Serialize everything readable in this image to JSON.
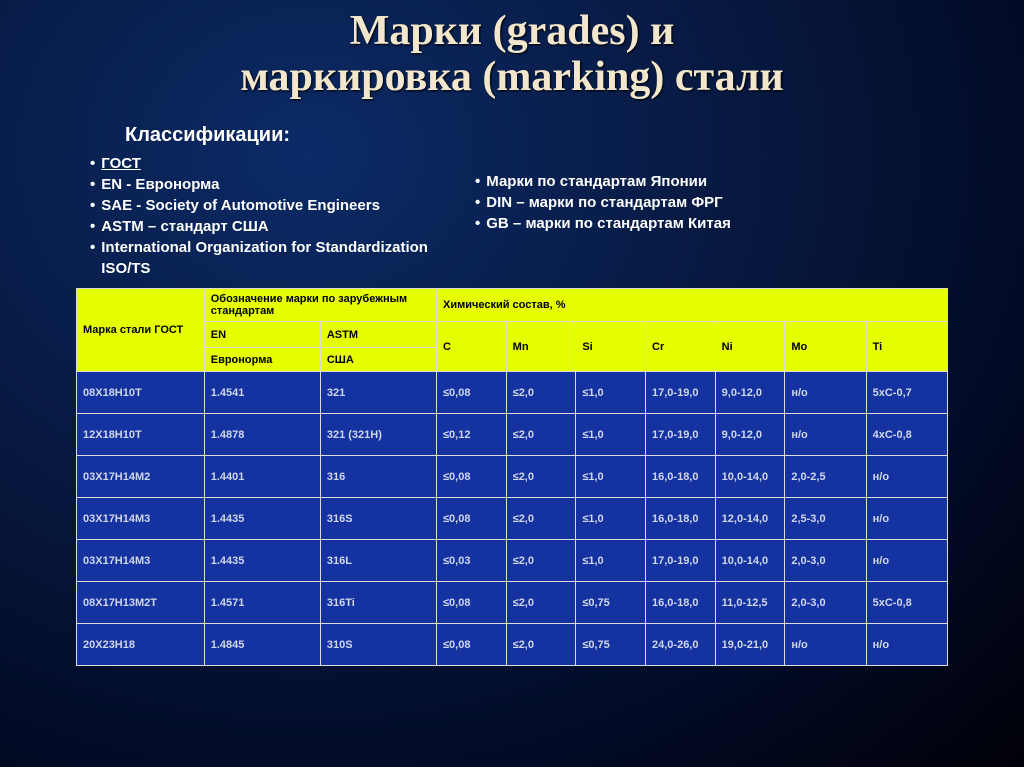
{
  "title_line1": "Марки (grades) и",
  "title_line2": "маркировка (marking) стали",
  "subtitle": "Классификации:",
  "left_bullets": [
    {
      "text": "ГОСТ",
      "underline": true
    },
    {
      "text": "EN - Евронорма"
    },
    {
      "text": "SAE - Society of Automotive Engineers"
    },
    {
      "text": "ASTM – стандарт США"
    },
    {
      "text": "International Organization for Standardization ISO/TS"
    }
  ],
  "right_bullets": [
    {
      "text": "Марки по стандартам Японии"
    },
    {
      "text": "DIN – марки по стандартам ФРГ"
    },
    {
      "text": "GB – марки по стандартам Китая"
    }
  ],
  "table": {
    "header_bg": "#e6ff00",
    "header_fg": "#000000",
    "cell_bg": "#1432a0",
    "cell_fg": "#d0d7ea",
    "border_color": "#dcdcdc",
    "h_gost": "Марка стали ГОСТ",
    "h_foreign": "Обозначение марки по зарубежным стандартам",
    "h_chem": "Химический состав, %",
    "h_en": "EN",
    "h_astm": "ASTM",
    "h_en_sub": "Евронорма",
    "h_astm_sub": "США",
    "chem_cols": [
      "C",
      "Mn",
      "Si",
      "Cr",
      "Ni",
      "Mo",
      "Ti"
    ],
    "rows": [
      {
        "gost": "08Х18Н10Т",
        "en": "1.4541",
        "astm": "321",
        "c": "≤0,08",
        "mn": "≤2,0",
        "si": "≤1,0",
        "cr": "17,0-19,0",
        "ni": "9,0-12,0",
        "mo": "н/о",
        "ti": "5xC-0,7"
      },
      {
        "gost": "12Х18Н10Т",
        "en": "1.4878",
        "astm": "321 (321H)",
        "c": "≤0,12",
        "mn": "≤2,0",
        "si": "≤1,0",
        "cr": "17,0-19,0",
        "ni": "9,0-12,0",
        "mo": "н/о",
        "ti": "4xC-0,8"
      },
      {
        "gost": "03Х17Н14М2",
        "en": "1.4401",
        "astm": "316",
        "c": "≤0,08",
        "mn": "≤2,0",
        "si": "≤1,0",
        "cr": "16,0-18,0",
        "ni": "10,0-14,0",
        "mo": "2,0-2,5",
        "ti": "н/о"
      },
      {
        "gost": "03Х17Н14М3",
        "en": "1.4435",
        "astm": "316S",
        "c": "≤0,08",
        "mn": "≤2,0",
        "si": "≤1,0",
        "cr": "16,0-18,0",
        "ni": "12,0-14,0",
        "mo": "2,5-3,0",
        "ti": "н/о"
      },
      {
        "gost": "03Х17Н14М3",
        "en": "1.4435",
        "astm": "316L",
        "c": "≤0,03",
        "mn": "≤2,0",
        "si": "≤1,0",
        "cr": "17,0-19,0",
        "ni": "10,0-14,0",
        "mo": "2,0-3,0",
        "ti": "н/о"
      },
      {
        "gost": "08Х17Н13М2Т",
        "en": "1.4571",
        "astm": "316Ti",
        "c": "≤0,08",
        "mn": "≤2,0",
        "si": "≤0,75",
        "cr": "16,0-18,0",
        "ni": "11,0-12,5",
        "mo": "2,0-3,0",
        "ti": "5xC-0,8"
      },
      {
        "gost": "20Х23Н18",
        "en": "1.4845",
        "astm": "310S",
        "c": "≤0,08",
        "mn": "≤2,0",
        "si": "≤0,75",
        "cr": "24,0-26,0",
        "ni": "19,0-21,0",
        "mo": "н/о",
        "ti": "н/о"
      }
    ]
  }
}
